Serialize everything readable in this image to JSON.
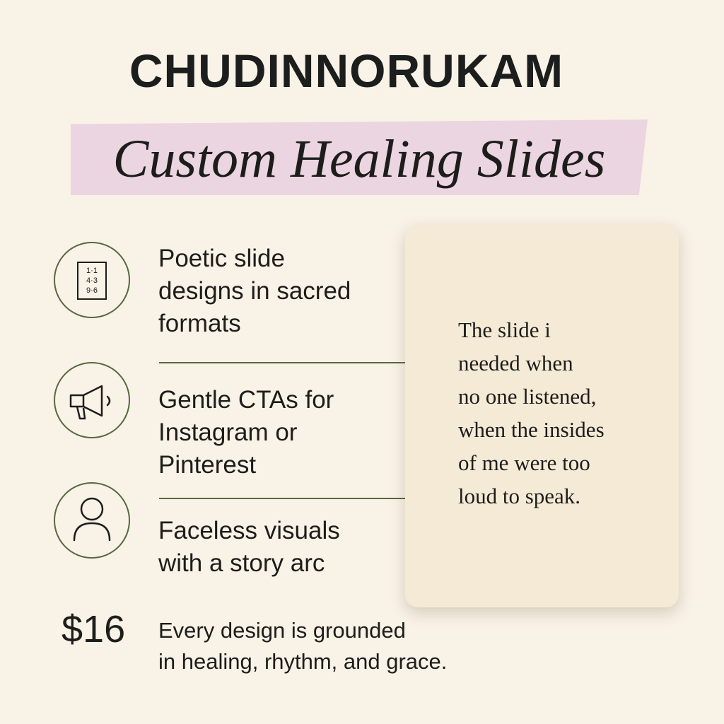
{
  "header": {
    "brand": "CHUDINNORUKAM",
    "subtitle": "Custom Healing Slides"
  },
  "features": [
    {
      "icon": "numbered-slide-icon",
      "icon_lines": [
        "1·1",
        "4·3",
        "9·6"
      ],
      "line1": "Poetic slide",
      "line2": "designs in sacred",
      "line3": "formats"
    },
    {
      "icon": "megaphone-icon",
      "line1": "Gentle CTAs for",
      "line2": "Instagram or",
      "line3": "Pinterest"
    },
    {
      "icon": "person-icon",
      "line1": "Faceless visuals",
      "line2": "with a story arc"
    }
  ],
  "quote": {
    "line1": "The slide i",
    "line2": "needed when",
    "line3": "no one listened,",
    "line4": "when the insides",
    "line5": "of me were too",
    "line6": "loud to speak."
  },
  "footer": {
    "price": "$16",
    "tagline_line1": "Every design is grounded",
    "tagline_line2": "in healing, rhythm, and grace."
  },
  "colors": {
    "background": "#f9f2e7",
    "accent_green": "#56683f",
    "ribbon_pink": "#ebd5e0",
    "card": "#f4ead6",
    "text": "#1d1d1b"
  }
}
